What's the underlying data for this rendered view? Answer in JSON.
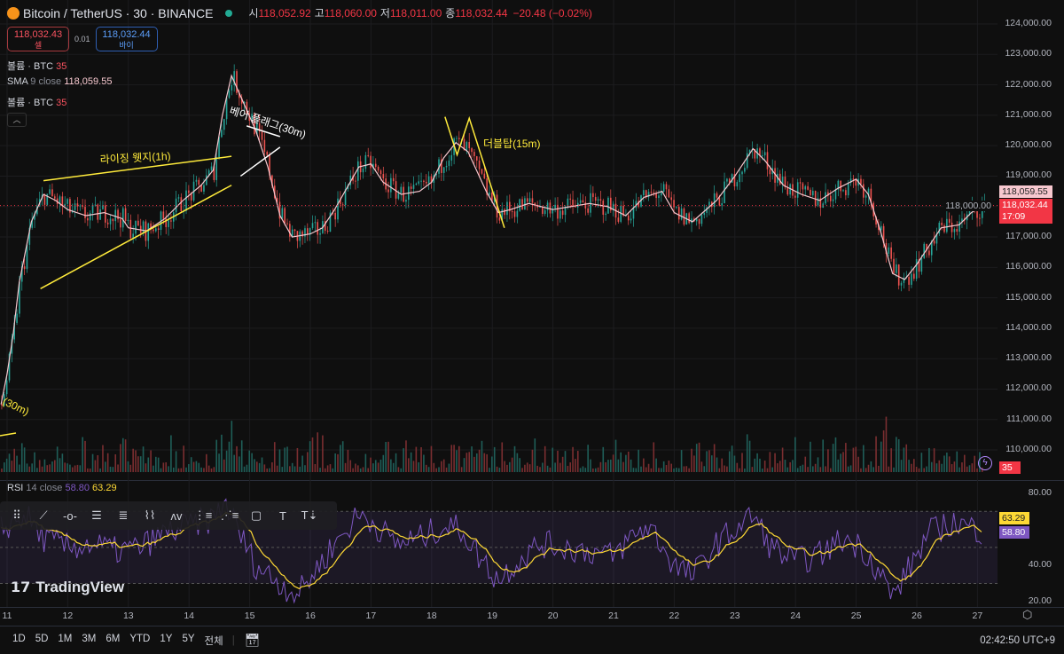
{
  "header": {
    "title": "Bitcoin / TetherUS · 30 · BINANCE",
    "open_label": "시",
    "open": "118,052.92",
    "high_label": "고",
    "high": "118,060.00",
    "low_label": "저",
    "low": "118,011.00",
    "close_label": "종",
    "close": "118,032.44",
    "change": "−20.48 (−0.02%)"
  },
  "trade": {
    "sell_price": "118,032.43",
    "sell_label": "셀",
    "spread": "0.01",
    "buy_price": "118,032.44",
    "buy_label": "바이"
  },
  "legends": {
    "volume1_name": "볼륨 · BTC",
    "volume1_value": "35",
    "sma_name": "SMA",
    "sma_params": "9 close",
    "sma_value": "118,059.55",
    "volume2_name": "볼륨 · BTC",
    "volume2_value": "35"
  },
  "rsi_legend": {
    "name": "RSI",
    "params": "14 close",
    "value": "58.80",
    "ma_value": "63.29"
  },
  "price_tags": {
    "sma": "118,059.55",
    "last": "118,032.44",
    "countdown": "17:09",
    "volume": "35",
    "rsi_ma": "63.29",
    "rsi": "58.80"
  },
  "bottom": {
    "ranges": [
      "1D",
      "5D",
      "1M",
      "3M",
      "6M",
      "YTD",
      "1Y",
      "5Y",
      "전체"
    ],
    "time": "02:42:50 UTC+9"
  },
  "logo": "TradingView",
  "colors": {
    "up": "#26a69a",
    "down": "#ef5350",
    "sma": "#f7c8cf",
    "rsi": "#7e57c2",
    "rsi_ma": "#fdd835",
    "annotation": "#ffeb3b",
    "last_price": "#f23645"
  },
  "toolbar_icons": [
    "drag-handle-icon",
    "trend-line-icon",
    "horizontal-ray-icon",
    "parallel-channel-icon",
    "fib-retracement-icon",
    "elliott-wave-12345-icon",
    "abc-pattern-icon",
    "regression-trend-icon",
    "pitchfork-icon",
    "rectangle-icon",
    "text-icon",
    "anchored-text-icon"
  ],
  "chart_data": {
    "type": "candlestick",
    "title": "",
    "x_ticks": [
      "11",
      "12",
      "13",
      "14",
      "15",
      "16",
      "17",
      "18",
      "19",
      "20",
      "21",
      "22",
      "23",
      "24",
      "25",
      "26",
      "27"
    ],
    "y_ticks": [
      110000,
      111000,
      112000,
      113000,
      114000,
      115000,
      116000,
      117000,
      118000,
      119000,
      120000,
      121000,
      122000,
      123000,
      124000
    ],
    "ylim": [
      110000,
      124000
    ],
    "grid": true,
    "price_path": [
      [
        10.9,
        111500
      ],
      [
        11.0,
        112500
      ],
      [
        11.1,
        113800
      ],
      [
        11.2,
        115500
      ],
      [
        11.4,
        117500
      ],
      [
        11.6,
        118400
      ],
      [
        11.8,
        118200
      ],
      [
        12.0,
        117900
      ],
      [
        12.3,
        117700
      ],
      [
        12.6,
        117800
      ],
      [
        12.9,
        117600
      ],
      [
        13.0,
        117300
      ],
      [
        13.3,
        117200
      ],
      [
        13.6,
        117600
      ],
      [
        13.9,
        118200
      ],
      [
        14.2,
        118700
      ],
      [
        14.4,
        119200
      ],
      [
        14.55,
        121000
      ],
      [
        14.7,
        122300
      ],
      [
        14.9,
        121400
      ],
      [
        15.1,
        120500
      ],
      [
        15.3,
        119300
      ],
      [
        15.5,
        117700
      ],
      [
        15.7,
        117000
      ],
      [
        16.0,
        117100
      ],
      [
        16.2,
        117300
      ],
      [
        16.4,
        117900
      ],
      [
        16.6,
        118600
      ],
      [
        16.8,
        119300
      ],
      [
        17.0,
        119400
      ],
      [
        17.2,
        118800
      ],
      [
        17.5,
        118400
      ],
      [
        17.8,
        118500
      ],
      [
        18.0,
        118800
      ],
      [
        18.2,
        119600
      ],
      [
        18.4,
        120100
      ],
      [
        18.6,
        119800
      ],
      [
        18.9,
        118500
      ],
      [
        19.1,
        117800
      ],
      [
        19.3,
        117900
      ],
      [
        19.6,
        118100
      ],
      [
        20.0,
        117900
      ],
      [
        20.3,
        118000
      ],
      [
        20.6,
        118100
      ],
      [
        20.9,
        118000
      ],
      [
        21.2,
        117700
      ],
      [
        21.5,
        118300
      ],
      [
        21.8,
        118500
      ],
      [
        22.0,
        117800
      ],
      [
        22.3,
        117500
      ],
      [
        22.7,
        118200
      ],
      [
        23.0,
        119000
      ],
      [
        23.3,
        119900
      ],
      [
        23.5,
        119500
      ],
      [
        23.8,
        118700
      ],
      [
        24.1,
        118400
      ],
      [
        24.4,
        118200
      ],
      [
        24.7,
        118600
      ],
      [
        25.0,
        118900
      ],
      [
        25.2,
        118400
      ],
      [
        25.4,
        117200
      ],
      [
        25.6,
        115800
      ],
      [
        25.8,
        115600
      ],
      [
        26.0,
        116100
      ],
      [
        26.2,
        116700
      ],
      [
        26.4,
        117300
      ],
      [
        26.7,
        117400
      ],
      [
        26.9,
        117800
      ],
      [
        27.1,
        118032
      ]
    ],
    "last_price": 118032.44,
    "sma9_last": 118059.55,
    "volume_last": 35,
    "rsi": {
      "ylim": [
        15,
        90
      ],
      "y_ticks": [
        20,
        40,
        80
      ],
      "bands": [
        30,
        50,
        70
      ],
      "path": [
        [
          10.9,
          60
        ],
        [
          11.3,
          68
        ],
        [
          11.6,
          55
        ],
        [
          12.0,
          50
        ],
        [
          12.4,
          52
        ],
        [
          12.8,
          48
        ],
        [
          13.2,
          50
        ],
        [
          13.6,
          58
        ],
        [
          14.0,
          62
        ],
        [
          14.4,
          66
        ],
        [
          14.6,
          75
        ],
        [
          14.8,
          60
        ],
        [
          15.1,
          40
        ],
        [
          15.5,
          30
        ],
        [
          15.8,
          24
        ],
        [
          16.1,
          38
        ],
        [
          16.4,
          52
        ],
        [
          16.8,
          68
        ],
        [
          17.0,
          65
        ],
        [
          17.4,
          52
        ],
        [
          17.8,
          55
        ],
        [
          18.2,
          62
        ],
        [
          18.5,
          60
        ],
        [
          18.8,
          44
        ],
        [
          19.1,
          32
        ],
        [
          19.4,
          42
        ],
        [
          19.8,
          52
        ],
        [
          20.2,
          50
        ],
        [
          20.6,
          48
        ],
        [
          21.0,
          45
        ],
        [
          21.3,
          56
        ],
        [
          21.6,
          62
        ],
        [
          22.0,
          40
        ],
        [
          22.3,
          34
        ],
        [
          22.7,
          52
        ],
        [
          23.0,
          60
        ],
        [
          23.3,
          68
        ],
        [
          23.6,
          50
        ],
        [
          24.0,
          42
        ],
        [
          24.4,
          46
        ],
        [
          24.8,
          55
        ],
        [
          25.1,
          50
        ],
        [
          25.4,
          36
        ],
        [
          25.6,
          22
        ],
        [
          25.9,
          40
        ],
        [
          26.2,
          58
        ],
        [
          26.6,
          64
        ],
        [
          27.1,
          58.8
        ]
      ],
      "ma_last": 63.29,
      "last": 58.8
    }
  },
  "annotations": {
    "rising_wedge": "라이징 웻지(1h)",
    "bear_flag": "베어 플래그(30m)",
    "double_top": "더블탑(15m)",
    "partial_left": "(30m)"
  }
}
